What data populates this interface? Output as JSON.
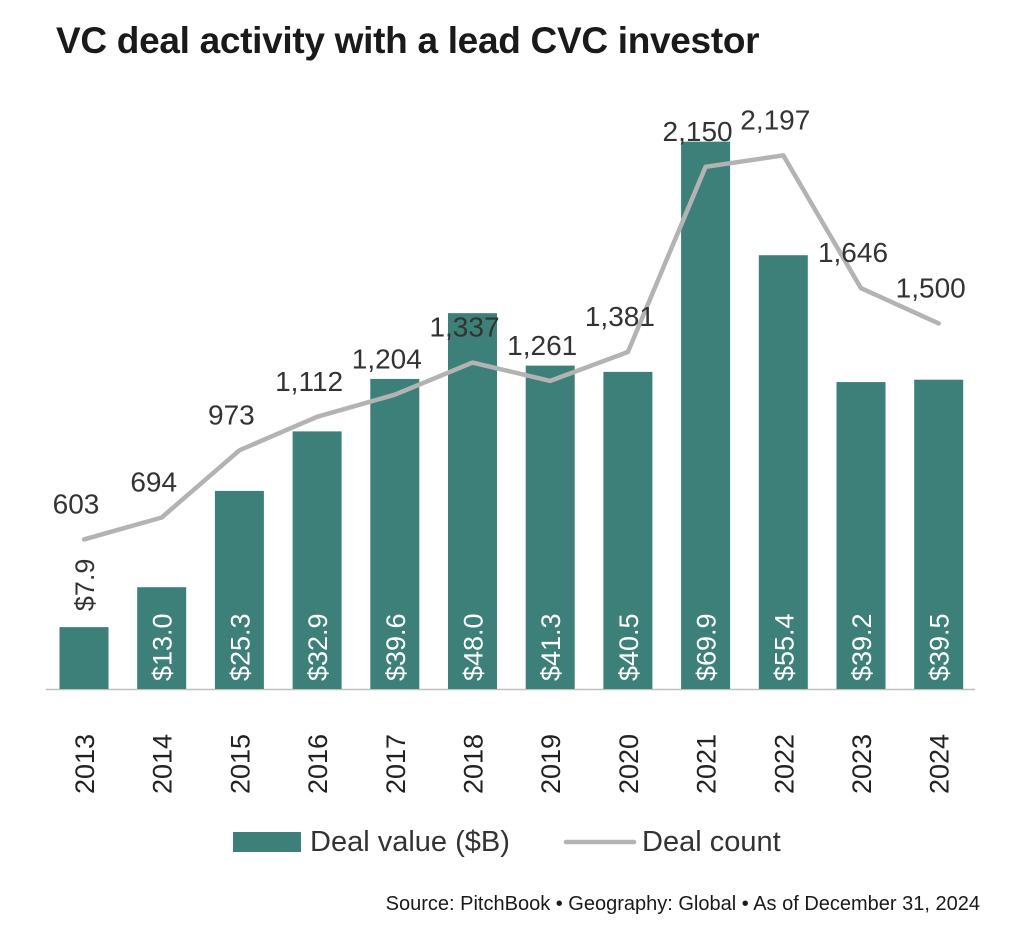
{
  "colors": {
    "bar": "#3d8079",
    "line": "#b3b3b3",
    "text": "#333333"
  },
  "chart_data": {
    "type": "bar",
    "title": "VC deal activity with a lead CVC investor",
    "categories": [
      "2013",
      "2014",
      "2015",
      "2016",
      "2017",
      "2018",
      "2019",
      "2020",
      "2021",
      "2022",
      "2023",
      "2024"
    ],
    "series": [
      {
        "name": "Deal value ($B)",
        "type": "bar",
        "values": [
          7.9,
          13.0,
          25.3,
          32.9,
          39.6,
          48.0,
          41.3,
          40.5,
          69.9,
          55.4,
          39.2,
          39.5
        ],
        "labels": [
          "$7.9",
          "$13.0",
          "$25.3",
          "$32.9",
          "$39.6",
          "$48.0",
          "$41.3",
          "$40.5",
          "$69.9",
          "$55.4",
          "$39.2",
          "$39.5"
        ]
      },
      {
        "name": "Deal count",
        "type": "line",
        "values": [
          603,
          694,
          973,
          1112,
          1204,
          1337,
          1261,
          1381,
          2150,
          2197,
          1646,
          1500
        ],
        "labels": [
          "603",
          "694",
          "973",
          "1,112",
          "1,204",
          "1,337",
          "1,261",
          "1,381",
          "2,150",
          "2,197",
          "1,646",
          "1,500"
        ]
      }
    ],
    "legend_position": "bottom",
    "grid": false
  },
  "source": "Source: PitchBook  •  Geography: Global  •  As of December 31, 2024"
}
